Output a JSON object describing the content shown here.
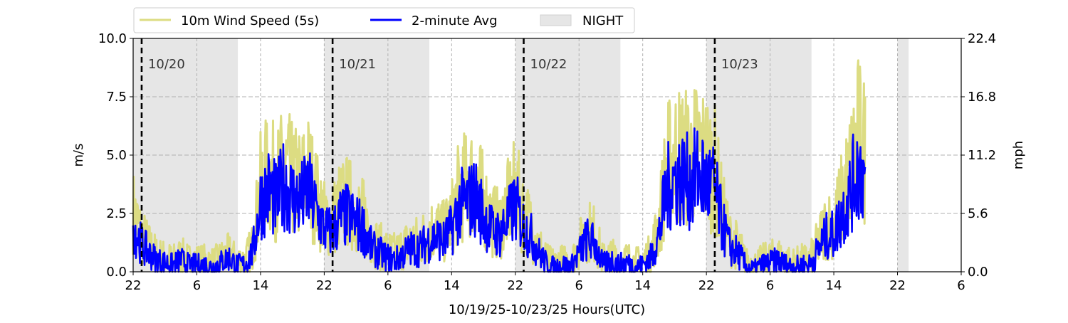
{
  "chart_data": {
    "type": "line",
    "xlabel": "10/19/25-10/23/25  Hours(UTC)",
    "ylabel": "m/s",
    "ylabel_right": "mph",
    "ylim": [
      0,
      10
    ],
    "xlim_hours": [
      0,
      104
    ],
    "grid": true,
    "legend_placement": "top-left, above plot",
    "x_tick_labels": [
      "22",
      "6",
      "14",
      "22",
      "6",
      "14",
      "22",
      "6",
      "14",
      "22",
      "6",
      "14",
      "22",
      "6"
    ],
    "y_tick_labels": [
      "0.0",
      "2.5",
      "5.0",
      "7.5",
      "10.0"
    ],
    "y_ticks": [
      0,
      2.5,
      5,
      7.5,
      10
    ],
    "y2_tick_labels": [
      "0.0",
      "5.6",
      "11.2",
      "16.8",
      "22.4"
    ],
    "legend": [
      {
        "label": "10m Wind Speed (5s)",
        "color": "#dcdc82"
      },
      {
        "label": "2-minute Avg",
        "color": "#0000ff"
      },
      {
        "label": "NIGHT",
        "color": "#e6e6e6"
      }
    ],
    "day_markers": [
      {
        "hour": 1.07,
        "label": "10/20"
      },
      {
        "hour": 25.05,
        "label": "10/21"
      },
      {
        "hour": 49.05,
        "label": "10/22"
      },
      {
        "hour": 73.05,
        "label": "10/23"
      }
    ],
    "night_periods_hours": [
      [
        0,
        13.15
      ],
      [
        24,
        37.2
      ],
      [
        48,
        61.2
      ],
      [
        72,
        85.2
      ],
      [
        96,
        97.4
      ]
    ],
    "series_hour_step": 1,
    "series": [
      {
        "name": "2-minute Avg",
        "color": "#0000ff",
        "values": [
          2.0,
          1.2,
          0.8,
          0.5,
          0.4,
          0.3,
          0.5,
          0.3,
          0.3,
          0.3,
          0.2,
          0.4,
          0.6,
          0.3,
          0.3,
          0.8,
          3.0,
          3.5,
          3.0,
          3.8,
          3.2,
          3.0,
          3.5,
          2.6,
          1.8,
          1.7,
          2.3,
          2.4,
          2.1,
          1.8,
          1.0,
          0.8,
          0.6,
          0.5,
          0.8,
          1.0,
          1.0,
          1.3,
          1.5,
          1.3,
          1.8,
          2.8,
          3.0,
          3.2,
          2.4,
          1.8,
          1.6,
          2.2,
          2.8,
          2.0,
          1.5,
          0.8,
          0.3,
          0.2,
          0.3,
          0.2,
          0.8,
          1.4,
          1.2,
          0.3,
          0.5,
          0.3,
          0.4,
          0.2,
          0.3,
          0.6,
          1.5,
          3.5,
          4.0,
          4.0,
          3.8,
          4.2,
          3.8,
          3.6,
          2.0,
          1.0,
          0.8,
          0.2,
          0.1,
          0.3,
          0.4,
          0.5,
          0.3,
          0.2,
          0.3,
          0.3,
          0.9,
          1.5,
          1.6,
          2.4,
          3.3,
          4.5,
          4.0
        ]
      },
      {
        "name": "10m Wind Speed (5s)",
        "color": "#dcdc82",
        "values": [
          2.6,
          1.6,
          1.1,
          0.7,
          0.6,
          0.5,
          0.7,
          0.5,
          0.5,
          0.5,
          0.4,
          0.6,
          0.8,
          0.5,
          0.5,
          1.1,
          3.6,
          4.2,
          3.7,
          4.5,
          3.9,
          3.7,
          4.2,
          3.2,
          2.3,
          2.2,
          2.9,
          3.0,
          2.6,
          2.3,
          1.4,
          1.1,
          0.9,
          0.8,
          1.1,
          1.3,
          1.3,
          1.7,
          1.9,
          1.7,
          2.3,
          3.5,
          3.7,
          4.0,
          3.0,
          2.3,
          2.0,
          2.8,
          3.5,
          2.5,
          1.9,
          1.1,
          0.5,
          0.4,
          0.5,
          0.4,
          1.1,
          1.8,
          1.6,
          0.5,
          0.7,
          0.5,
          0.6,
          0.4,
          0.5,
          0.8,
          2.0,
          4.4,
          5.0,
          5.0,
          4.8,
          5.2,
          4.8,
          4.5,
          2.6,
          1.4,
          1.1,
          0.4,
          0.3,
          0.5,
          0.6,
          0.7,
          0.5,
          0.4,
          0.5,
          0.5,
          1.2,
          2.0,
          2.1,
          3.1,
          4.2,
          5.8,
          5.1
        ]
      }
    ]
  }
}
